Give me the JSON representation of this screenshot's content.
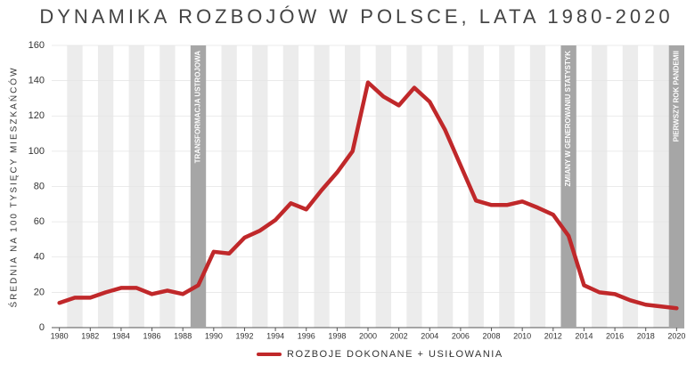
{
  "chart_data": {
    "type": "line",
    "title": "DYNAMIKA ROZBOJÓW W POLSCE, LATA 1980-2020",
    "y_label": "ŚREDNIA NA 100 TYSIĘCY MIESZKAŃCÓW",
    "x": [
      1980,
      1981,
      1982,
      1983,
      1984,
      1985,
      1986,
      1987,
      1988,
      1989,
      1990,
      1991,
      1992,
      1993,
      1994,
      1995,
      1996,
      1997,
      1998,
      1999,
      2000,
      2001,
      2002,
      2003,
      2004,
      2005,
      2006,
      2007,
      2008,
      2009,
      2010,
      2011,
      2012,
      2013,
      2014,
      2015,
      2016,
      2017,
      2018,
      2019,
      2020
    ],
    "series": [
      {
        "name": "ROZBOJE DOKONANE + USIŁOWANIA",
        "color": "#c0282a",
        "values": [
          14,
          17,
          17,
          20,
          22.5,
          22.5,
          19,
          21,
          19,
          24,
          43,
          42,
          51,
          55,
          61,
          70.5,
          67,
          78,
          88,
          100,
          139,
          131,
          126,
          136,
          128,
          112,
          92,
          72,
          69.5,
          69.5,
          71.5,
          68,
          64,
          52,
          24,
          20,
          19,
          15.5,
          13,
          12,
          11
        ]
      }
    ],
    "annotations": [
      {
        "text": "TRANSFORMACJA USTROJOWA",
        "x": 1989
      },
      {
        "text": "ZMIANY W GENEROWANIU STATYSTYK",
        "x": 2013
      },
      {
        "text": "PIERWSZY ROK PANDEMII",
        "x": 2020
      }
    ],
    "xlim": [
      1979.5,
      2020.5
    ],
    "xticks": [
      1980,
      1982,
      1984,
      1986,
      1988,
      1990,
      1992,
      1994,
      1996,
      1998,
      2000,
      2002,
      2004,
      2006,
      2008,
      2010,
      2012,
      2014,
      2016,
      2018,
      2020
    ],
    "ylim": [
      0,
      160
    ],
    "yticks": [
      0,
      20,
      40,
      60,
      80,
      100,
      120,
      140,
      160
    ],
    "grid": true
  }
}
